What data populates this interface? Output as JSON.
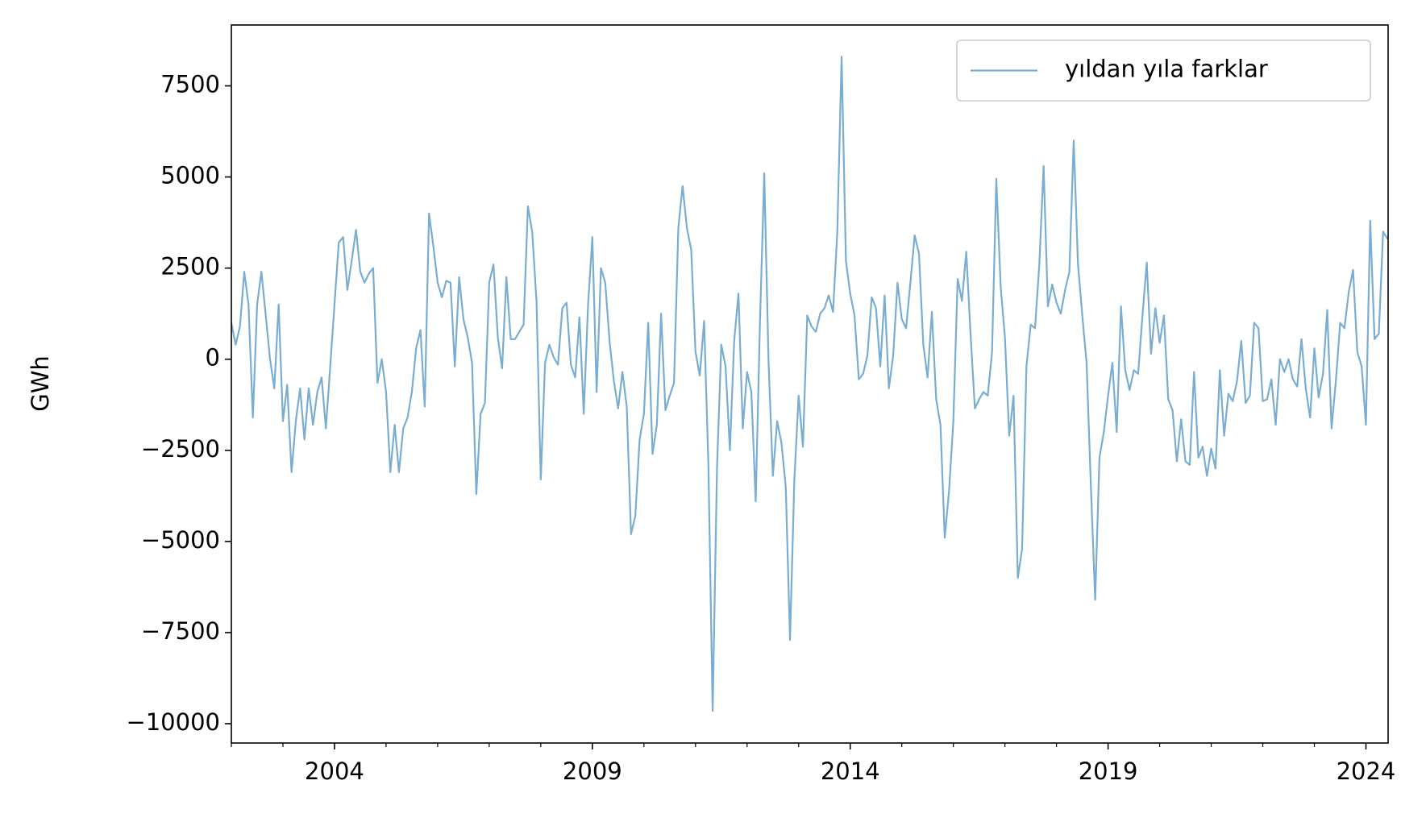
{
  "chart_data": {
    "type": "line",
    "ylabel": "GWh",
    "x": [
      2002,
      2002.083,
      2002.167,
      2002.25,
      2002.333,
      2002.417,
      2002.5,
      2002.583,
      2002.667,
      2002.75,
      2002.833,
      2002.917,
      2003,
      2003.083,
      2003.167,
      2003.25,
      2003.333,
      2003.417,
      2003.5,
      2003.583,
      2003.667,
      2003.75,
      2003.833,
      2003.917,
      2004,
      2004.083,
      2004.167,
      2004.25,
      2004.333,
      2004.417,
      2004.5,
      2004.583,
      2004.667,
      2004.75,
      2004.833,
      2004.917,
      2005,
      2005.083,
      2005.167,
      2005.25,
      2005.333,
      2005.417,
      2005.5,
      2005.583,
      2005.667,
      2005.75,
      2005.833,
      2005.917,
      2006,
      2006.083,
      2006.167,
      2006.25,
      2006.333,
      2006.417,
      2006.5,
      2006.583,
      2006.667,
      2006.75,
      2006.833,
      2006.917,
      2007,
      2007.083,
      2007.167,
      2007.25,
      2007.333,
      2007.417,
      2007.5,
      2007.583,
      2007.667,
      2007.75,
      2007.833,
      2007.917,
      2008,
      2008.083,
      2008.167,
      2008.25,
      2008.333,
      2008.417,
      2008.5,
      2008.583,
      2008.667,
      2008.75,
      2008.833,
      2008.917,
      2009,
      2009.083,
      2009.167,
      2009.25,
      2009.333,
      2009.417,
      2009.5,
      2009.583,
      2009.667,
      2009.75,
      2009.833,
      2009.917,
      2010,
      2010.083,
      2010.167,
      2010.25,
      2010.333,
      2010.417,
      2010.5,
      2010.583,
      2010.667,
      2010.75,
      2010.833,
      2010.917,
      2011,
      2011.083,
      2011.167,
      2011.25,
      2011.333,
      2011.417,
      2011.5,
      2011.583,
      2011.667,
      2011.75,
      2011.833,
      2011.917,
      2012,
      2012.083,
      2012.167,
      2012.25,
      2012.333,
      2012.417,
      2012.5,
      2012.583,
      2012.667,
      2012.75,
      2012.833,
      2012.917,
      2013,
      2013.083,
      2013.167,
      2013.25,
      2013.333,
      2013.417,
      2013.5,
      2013.583,
      2013.667,
      2013.75,
      2013.833,
      2013.917,
      2014,
      2014.083,
      2014.167,
      2014.25,
      2014.333,
      2014.417,
      2014.5,
      2014.583,
      2014.667,
      2014.75,
      2014.833,
      2014.917,
      2015,
      2015.083,
      2015.167,
      2015.25,
      2015.333,
      2015.417,
      2015.5,
      2015.583,
      2015.667,
      2015.75,
      2015.833,
      2015.917,
      2016,
      2016.083,
      2016.167,
      2016.25,
      2016.333,
      2016.417,
      2016.5,
      2016.583,
      2016.667,
      2016.75,
      2016.833,
      2016.917,
      2017,
      2017.083,
      2017.167,
      2017.25,
      2017.333,
      2017.417,
      2017.5,
      2017.583,
      2017.667,
      2017.75,
      2017.833,
      2017.917,
      2018,
      2018.083,
      2018.167,
      2018.25,
      2018.333,
      2018.417,
      2018.5,
      2018.583,
      2018.667,
      2018.75,
      2018.833,
      2018.917,
      2019,
      2019.083,
      2019.167,
      2019.25,
      2019.333,
      2019.417,
      2019.5,
      2019.583,
      2019.667,
      2019.75,
      2019.833,
      2019.917,
      2020,
      2020.083,
      2020.167,
      2020.25,
      2020.333,
      2020.417,
      2020.5,
      2020.583,
      2020.667,
      2020.75,
      2020.833,
      2020.917,
      2021,
      2021.083,
      2021.167,
      2021.25,
      2021.333,
      2021.417,
      2021.5,
      2021.583,
      2021.667,
      2021.75,
      2021.833,
      2021.917,
      2022,
      2022.083,
      2022.167,
      2022.25,
      2022.333,
      2022.417,
      2022.5,
      2022.583,
      2022.667,
      2022.75,
      2022.833,
      2022.917,
      2023,
      2023.083,
      2023.167,
      2023.25,
      2023.333,
      2023.417,
      2023.5,
      2023.583,
      2023.667,
      2023.75,
      2023.833,
      2023.917,
      2024,
      2024.083,
      2024.167,
      2024.25,
      2024.333,
      2024.417
    ],
    "series": [
      {
        "name": "yıldan yıla farklar",
        "color": "#1f77b4",
        "alpha": 0.6,
        "values": [
          1000,
          400,
          900,
          2400,
          1500,
          -1600,
          1500,
          2400,
          1200,
          0,
          -800,
          1500,
          -1700,
          -700,
          -3100,
          -1700,
          -800,
          -2200,
          -800,
          -1800,
          -900,
          -500,
          -1900,
          -200,
          1500,
          3200,
          3350,
          1900,
          2700,
          3550,
          2400,
          2100,
          2350,
          2500,
          -650,
          0,
          -900,
          -3100,
          -1800,
          -3100,
          -1900,
          -1600,
          -900,
          300,
          800,
          -1300,
          4000,
          3100,
          2100,
          1700,
          2150,
          2100,
          -200,
          2250,
          1100,
          600,
          -100,
          -3700,
          -1500,
          -1200,
          2100,
          2600,
          600,
          -250,
          2250,
          550,
          550,
          750,
          950,
          4200,
          3500,
          1600,
          -3300,
          -100,
          400,
          50,
          -150,
          1400,
          1550,
          -150,
          -500,
          1150,
          -1500,
          1500,
          3350,
          -900,
          2500,
          2100,
          500,
          -600,
          -1350,
          -350,
          -1300,
          -4800,
          -4300,
          -2200,
          -1500,
          1000,
          -2600,
          -1800,
          1250,
          -1400,
          -1000,
          -650,
          3600,
          4750,
          3600,
          3000,
          200,
          -450,
          1050,
          -2900,
          -9650,
          -3000,
          400,
          -200,
          -2500,
          500,
          1800,
          -1900,
          -350,
          -900,
          -3900,
          1000,
          5100,
          -100,
          -3200,
          -1700,
          -2300,
          -3500,
          -7700,
          -3300,
          -1000,
          -2400,
          1200,
          900,
          750,
          1250,
          1400,
          1750,
          1300,
          3500,
          8300,
          2700,
          1800,
          1200,
          -550,
          -400,
          100,
          1700,
          1400,
          -200,
          1750,
          -800,
          100,
          2100,
          1100,
          850,
          2100,
          3400,
          2900,
          400,
          -500,
          1300,
          -1100,
          -1800,
          -4900,
          -3600,
          -1700,
          2200,
          1600,
          2950,
          700,
          -1350,
          -1100,
          -900,
          -1000,
          200,
          4950,
          2000,
          600,
          -2100,
          -1000,
          -6000,
          -5200,
          -200,
          950,
          850,
          2600,
          5300,
          1450,
          2050,
          1550,
          1250,
          1900,
          2400,
          6000,
          2600,
          1200,
          -100,
          -3500,
          -6600,
          -2700,
          -2000,
          -1000,
          -100,
          -2000,
          1450,
          -300,
          -850,
          -300,
          -400,
          1200,
          2650,
          150,
          1400,
          450,
          1200,
          -1100,
          -1400,
          -2800,
          -1650,
          -2800,
          -2900,
          -350,
          -2700,
          -2400,
          -3200,
          -2450,
          -3000,
          -300,
          -2100,
          -950,
          -1150,
          -600,
          500,
          -1200,
          -1000,
          1000,
          850,
          -1150,
          -1100,
          -550,
          -1800,
          0,
          -350,
          0,
          -550,
          -750,
          550,
          -800,
          -1600,
          300,
          -1050,
          -400,
          1350,
          -1900,
          -600,
          1000,
          850,
          1850,
          2450,
          200,
          -200,
          -1800,
          3800,
          550,
          700,
          3500,
          3300
        ]
      }
    ],
    "xlim": [
      2002,
      2024.43
    ],
    "xticks": [
      2004,
      2009,
      2014,
      2019,
      2024
    ],
    "xminorticks": [
      2002,
      2003,
      2005,
      2006,
      2007,
      2008,
      2010,
      2011,
      2012,
      2013,
      2015,
      2016,
      2017,
      2018,
      2020,
      2021,
      2022,
      2023
    ],
    "ylim": [
      -10530,
      9170
    ],
    "yticks": [
      {
        "value": -10000,
        "label": "−10000"
      },
      {
        "value": -7500,
        "label": "−7500"
      },
      {
        "value": -5000,
        "label": "−5000"
      },
      {
        "value": -2500,
        "label": "−2500"
      },
      0,
      2500,
      5000,
      7500
    ],
    "legend": "upper right"
  }
}
